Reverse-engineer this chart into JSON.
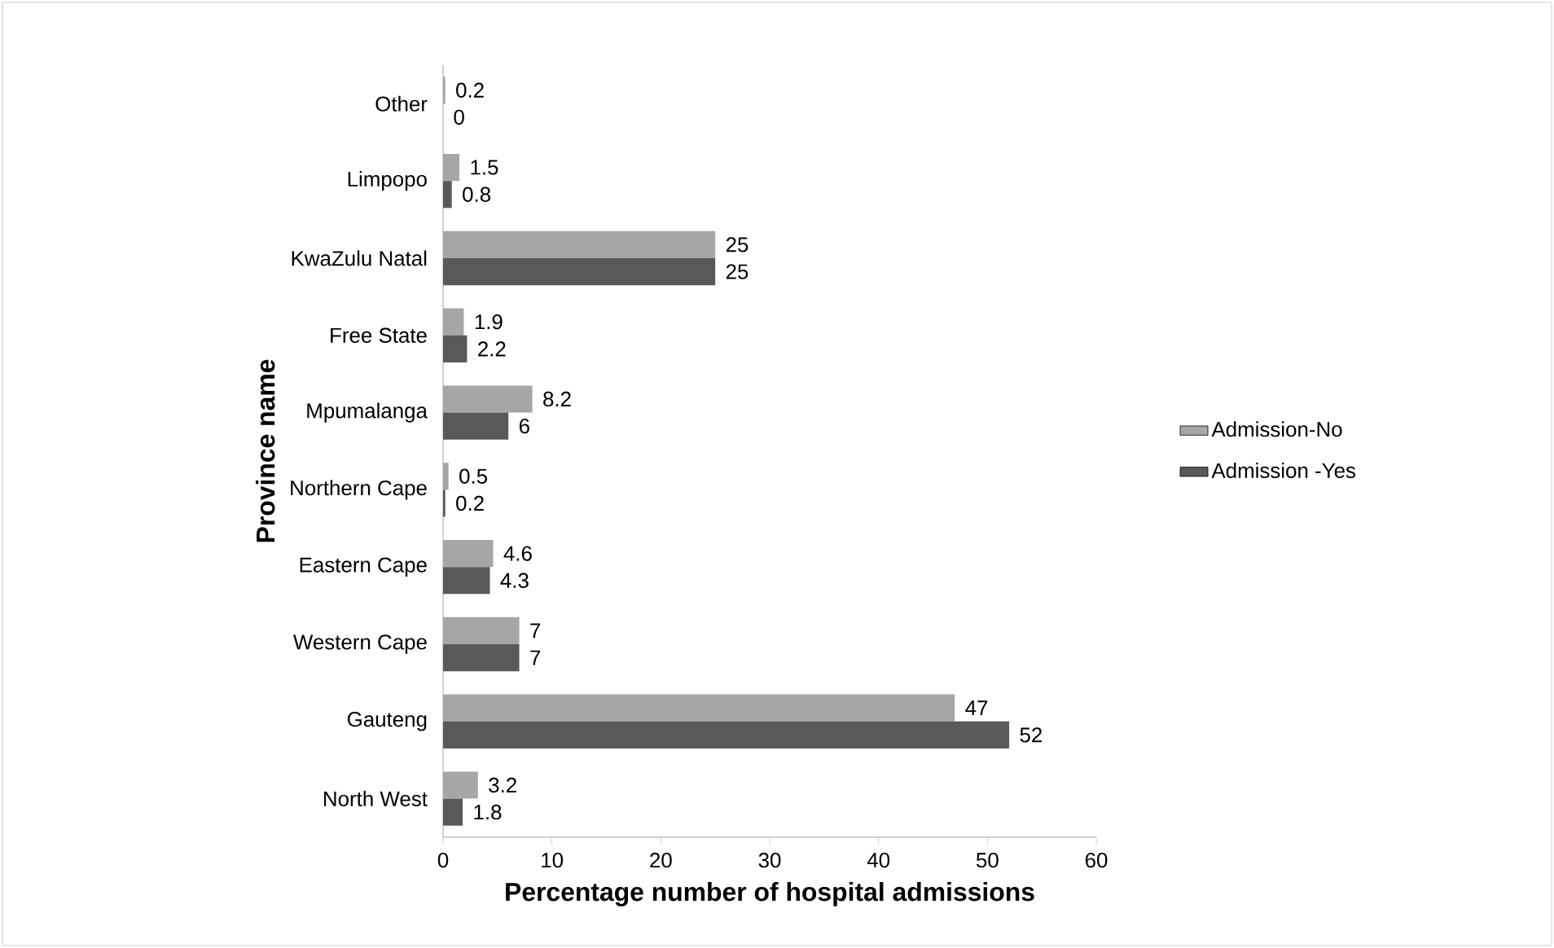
{
  "chart_data": {
    "type": "bar",
    "orientation": "horizontal",
    "categories": [
      "Other",
      "Limpopo",
      "KwaZulu Natal",
      "Free State",
      "Mpumalanga",
      "Northern Cape",
      "Eastern Cape",
      "Western Cape",
      "Gauteng",
      "North West"
    ],
    "series": [
      {
        "name": "Admission-No",
        "color": "#a6a6a6",
        "values": [
          0.2,
          1.5,
          25,
          1.9,
          8.2,
          0.5,
          4.6,
          7,
          47,
          3.2
        ]
      },
      {
        "name": "Admission -Yes",
        "color": "#595959",
        "values": [
          0,
          0.8,
          25,
          2.2,
          6,
          0.2,
          4.3,
          7,
          52,
          1.8
        ]
      }
    ],
    "xlabel": "Percentage number of hospital admissions",
    "ylabel": "Province name",
    "xlim": [
      0,
      60
    ],
    "xticks": [
      0,
      10,
      20,
      30,
      40,
      50,
      60
    ],
    "data_labels": true,
    "legend": "right"
  }
}
